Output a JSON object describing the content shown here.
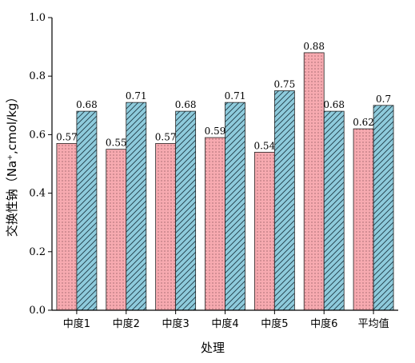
{
  "chart_data": {
    "type": "bar",
    "xlabel": "处理",
    "ylabel": "交换性钠（Na⁺,cmol/kg）",
    "categories": [
      "中度1",
      "中度2",
      "中度3",
      "中度4",
      "中度5",
      "中度6",
      "平均值"
    ],
    "ylim": [
      0,
      1.0
    ],
    "yticks": [
      "0.0",
      "0.2",
      "0.4",
      "0.6",
      "0.8",
      "1.0"
    ],
    "grid": false,
    "series": [
      {
        "values": [
          0.57,
          0.55,
          0.57,
          0.59,
          0.54,
          0.88,
          0.62
        ],
        "labels": [
          "0.57",
          "0.55",
          "0.57",
          "0.59",
          "0.54",
          "0.88",
          "0.62"
        ],
        "color": "#f7aab0",
        "pattern": "dots"
      },
      {
        "values": [
          0.68,
          0.71,
          0.68,
          0.71,
          0.75,
          0.68,
          0.7
        ],
        "labels": [
          "0.68",
          "0.71",
          "0.68",
          "0.71",
          "0.75",
          "0.68",
          "0.7"
        ],
        "color": "#8ecbdc",
        "pattern": "diagonal-hatch"
      }
    ]
  }
}
